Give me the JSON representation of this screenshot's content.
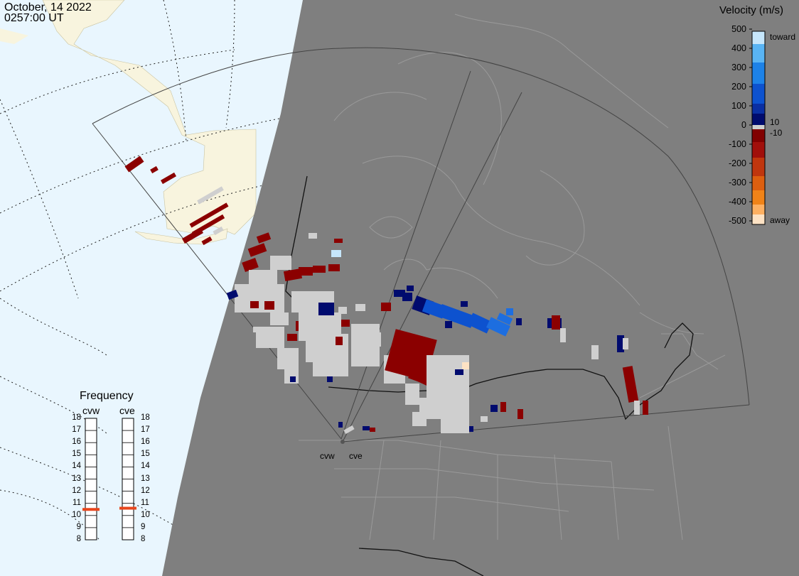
{
  "header": {
    "date": "October, 14 2022",
    "time": "0257:00 UT"
  },
  "legend": {
    "title": "Velocity (m/s)",
    "ticks": [
      "500",
      "400",
      "300",
      "200",
      "100",
      "0",
      "-100",
      "-200",
      "-300",
      "-400",
      "-500"
    ],
    "side_labels": {
      "toward": "toward",
      "away": "away",
      "pos_min": "10",
      "neg_min": "-10"
    },
    "colors": [
      "#fde2c4",
      "#fdb062",
      "#f08318",
      "#dd5f10",
      "#c0360e",
      "#a10f0b",
      "#810000",
      "#cfcfcf",
      "#000b6e",
      "#0a2fa3",
      "#0d52cf",
      "#1d82e8",
      "#59b4f4",
      "#c6e6fb"
    ]
  },
  "frequency": {
    "title": "Frequency",
    "radars": [
      {
        "name": "cvw",
        "value": 10.5
      },
      {
        "name": "cve",
        "value": 10.6
      }
    ],
    "scale": [
      "18",
      "17",
      "16",
      "15",
      "14",
      "13",
      "12",
      "11",
      "10",
      "9",
      "8"
    ]
  },
  "sites": [
    {
      "name": "cvw"
    },
    {
      "name": "cve"
    }
  ],
  "colors": {
    "ocean": "#e9f6fe",
    "land_in_view": "#f8f4de",
    "night_gray": "#7f7f7f",
    "ground_scatter": "#cfcfcf",
    "coast": "#9a9a9a",
    "fov": "#555555",
    "freq_marker": "#e8461c"
  },
  "icons": [
    "radar-site-marker"
  ]
}
